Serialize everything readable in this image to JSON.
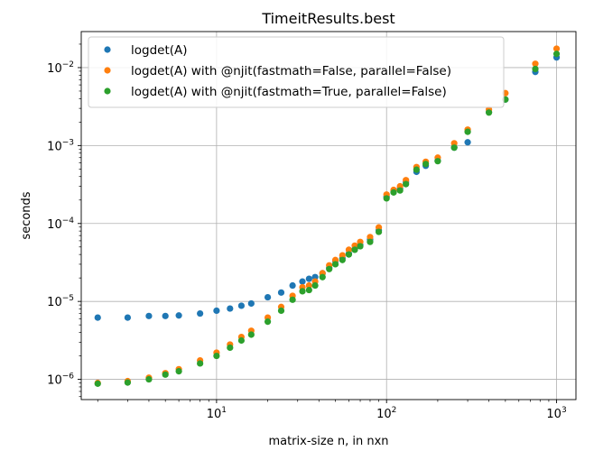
{
  "chart_data": {
    "type": "scatter",
    "title": "TimeitResults.best",
    "xlabel": "matrix-size n, in nxn",
    "ylabel": "seconds",
    "xscale": "log",
    "yscale": "log",
    "xlim": [
      1.6,
      1300
    ],
    "ylim": [
      5.5e-07,
      0.029
    ],
    "grid": true,
    "legend_position": "top-left",
    "x_ticks": [
      {
        "base": "10",
        "exp": "1",
        "value": 10
      },
      {
        "base": "10",
        "exp": "2",
        "value": 100
      },
      {
        "base": "10",
        "exp": "3",
        "value": 1000
      }
    ],
    "y_ticks": [
      {
        "base": "10",
        "exp": "−6",
        "value": 1e-06
      },
      {
        "base": "10",
        "exp": "−5",
        "value": 1e-05
      },
      {
        "base": "10",
        "exp": "−4",
        "value": 0.0001
      },
      {
        "base": "10",
        "exp": "−3",
        "value": 0.001
      },
      {
        "base": "10",
        "exp": "−2",
        "value": 0.01
      }
    ],
    "x": [
      2,
      3,
      4,
      5,
      6,
      8,
      10,
      12,
      14,
      16,
      20,
      24,
      28,
      32,
      35,
      38,
      42,
      46,
      50,
      55,
      60,
      65,
      70,
      80,
      90,
      100,
      110,
      120,
      130,
      150,
      170,
      200,
      250,
      300,
      400,
      500,
      750,
      1000
    ],
    "series": [
      {
        "name": "logdet(A)",
        "color": "#1f77b4",
        "values": [
          6.2e-06,
          6.2e-06,
          6.5e-06,
          6.5e-06,
          6.6e-06,
          7e-06,
          7.6e-06,
          8.1e-06,
          8.8e-06,
          9.4e-06,
          1.13e-05,
          1.3e-05,
          1.6e-05,
          1.8e-05,
          1.95e-05,
          2.05e-05,
          2.3e-05,
          2.7e-05,
          3.3e-05,
          3.6e-05,
          4.1e-05,
          4.7e-05,
          5.3e-05,
          6.2e-05,
          8.2e-05,
          0.00022,
          0.00026,
          0.00028,
          0.00034,
          0.00046,
          0.00055,
          0.00064,
          0.00094,
          0.0011,
          0.0027,
          0.0039,
          0.0088,
          0.0135
        ]
      },
      {
        "name": "logdet(A) with @njit(fastmath=False, parallel=False)",
        "color": "#ff7f0e",
        "values": [
          9e-07,
          9.5e-07,
          1.05e-06,
          1.2e-06,
          1.35e-06,
          1.75e-06,
          2.2e-06,
          2.8e-06,
          3.5e-06,
          4.2e-06,
          6.2e-06,
          8.5e-06,
          1.18e-05,
          1.52e-05,
          1.6e-05,
          1.8e-05,
          2.3e-05,
          2.9e-05,
          3.4e-05,
          3.9e-05,
          4.6e-05,
          5.2e-05,
          5.8e-05,
          6.7e-05,
          8.9e-05,
          0.000235,
          0.00027,
          0.0003,
          0.00036,
          0.00053,
          0.00062,
          0.0007,
          0.00107,
          0.0016,
          0.0029,
          0.0047,
          0.0112,
          0.0175
        ]
      },
      {
        "name": "logdet(A) with @njit(fastmath=True, parallel=False)",
        "color": "#2ca02c",
        "values": [
          8.8e-07,
          9.1e-07,
          1e-06,
          1.15e-06,
          1.27e-06,
          1.6e-06,
          2e-06,
          2.55e-06,
          3.15e-06,
          3.75e-06,
          5.5e-06,
          7.6e-06,
          1.05e-05,
          1.35e-05,
          1.4e-05,
          1.6e-05,
          2.05e-05,
          2.6e-05,
          3e-05,
          3.4e-05,
          4e-05,
          4.6e-05,
          5.1e-05,
          5.8e-05,
          7.8e-05,
          0.00021,
          0.00025,
          0.000265,
          0.00032,
          0.00049,
          0.00058,
          0.00063,
          0.00094,
          0.0015,
          0.00265,
          0.0039,
          0.0096,
          0.015
        ]
      }
    ]
  }
}
